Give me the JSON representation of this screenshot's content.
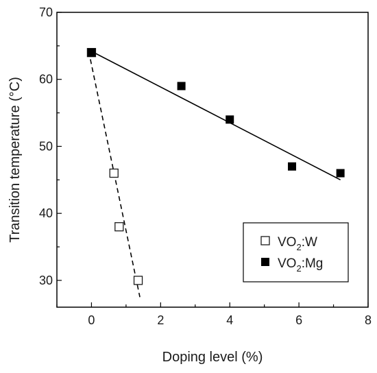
{
  "chart_data": {
    "type": "scatter",
    "xlabel": "Doping level (%)",
    "ylabel": "Transition temperature (°C)",
    "xlim": [
      -1,
      8
    ],
    "ylim": [
      26,
      70
    ],
    "x_ticks": [
      0,
      2,
      4,
      6,
      8
    ],
    "y_ticks": [
      30,
      40,
      50,
      60,
      70
    ],
    "grid": false,
    "legend_position": "bottom-right",
    "series": [
      {
        "name": "VO2:W",
        "label_main": "VO",
        "label_sub": "2",
        "label_rest": ":W",
        "marker": "open-square",
        "color": "#1a1a1a",
        "x": [
          0,
          0.65,
          0.8,
          1.35
        ],
        "y": [
          64,
          46,
          38,
          30
        ],
        "fit_line": {
          "style": "dashed",
          "x": [
            -0.08,
            1.4
          ],
          "y": [
            64.2,
            27.5
          ]
        }
      },
      {
        "name": "VO2:Mg",
        "label_main": "VO",
        "label_sub": "2",
        "label_rest": ":Mg",
        "marker": "filled-square",
        "color": "#000000",
        "x": [
          0,
          2.6,
          4,
          5.8,
          7.2
        ],
        "y": [
          64,
          59,
          54,
          47,
          46
        ],
        "fit_line": {
          "style": "solid",
          "x": [
            -0.08,
            7.2
          ],
          "y": [
            64.4,
            45
          ]
        }
      }
    ]
  }
}
